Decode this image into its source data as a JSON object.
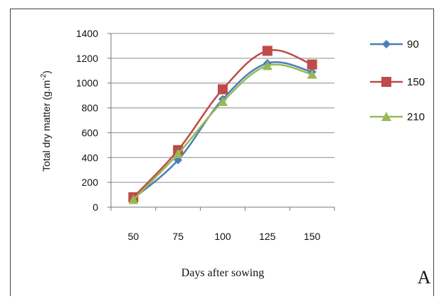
{
  "chart_data": {
    "type": "line",
    "categories": [
      "50",
      "75",
      "100",
      "125",
      "150"
    ],
    "xlabel": "Days after sowing",
    "ylabel": "Total dry matter  (g.m",
    "ylabel_sup": "-2",
    "ylabel_close": ")",
    "ylim": [
      0,
      1400
    ],
    "yticks": [
      0,
      200,
      400,
      600,
      800,
      1000,
      1200,
      1400
    ],
    "grid": "horizontal",
    "legend_position": "right",
    "panel_label": "A",
    "series": [
      {
        "name": "90",
        "color": "#4a7ebb",
        "marker": "diamond",
        "values": [
          70,
          380,
          870,
          1160,
          1090
        ]
      },
      {
        "name": "150",
        "color": "#be4b48",
        "marker": "square",
        "values": [
          80,
          460,
          950,
          1260,
          1150
        ]
      },
      {
        "name": "210",
        "color": "#98b954",
        "marker": "triangle",
        "values": [
          60,
          430,
          850,
          1140,
          1070
        ]
      }
    ]
  }
}
